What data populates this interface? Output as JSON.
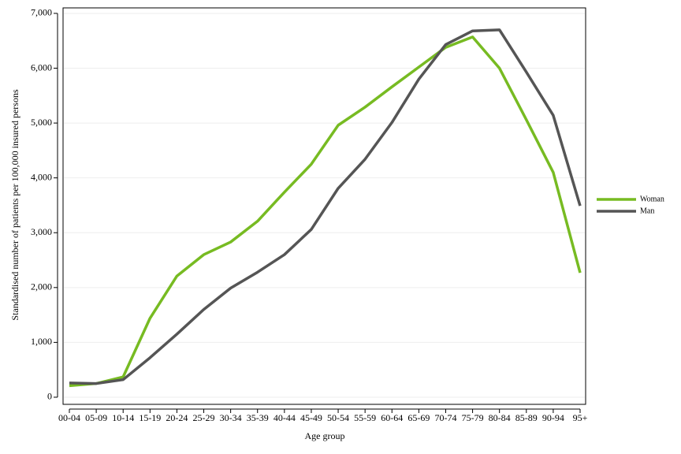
{
  "chart_data": {
    "type": "line",
    "xlabel": "Age group",
    "ylabel": "Standardised number of patients per 100,000 insured persons",
    "categories": [
      "00-04",
      "05-09",
      "10-14",
      "15-19",
      "20-24",
      "25-29",
      "30-34",
      "35-39",
      "40-44",
      "45-49",
      "50-54",
      "55-59",
      "60-64",
      "65-69",
      "70-74",
      "75-79",
      "80-84",
      "85-89",
      "90-94",
      "95+"
    ],
    "series": [
      {
        "name": "Woman",
        "color": "#77bb22",
        "values": [
          210,
          250,
          370,
          1440,
          2210,
          2600,
          2830,
          3210,
          3740,
          4250,
          4960,
          5290,
          5660,
          6020,
          6380,
          6570,
          6000,
          5060,
          4100,
          2270
        ]
      },
      {
        "name": "Man",
        "color": "#555555",
        "values": [
          260,
          250,
          320,
          720,
          1150,
          1600,
          1990,
          2280,
          2600,
          3060,
          3810,
          4340,
          5010,
          5800,
          6430,
          6680,
          6700,
          5930,
          5140,
          3490
        ]
      }
    ],
    "ylim": [
      -130,
      7100
    ],
    "yticks": [
      0,
      {
        "value": 1000,
        "label": "1,000"
      },
      {
        "value": 2000,
        "label": "2,000"
      },
      {
        "value": 3000,
        "label": "3,000"
      },
      {
        "value": 4000,
        "label": "4,000"
      },
      {
        "value": 5000,
        "label": "5,000"
      },
      {
        "value": 6000,
        "label": "6,000"
      },
      {
        "value": 7000,
        "label": "7,000"
      }
    ],
    "grid": true,
    "legend": "right"
  }
}
